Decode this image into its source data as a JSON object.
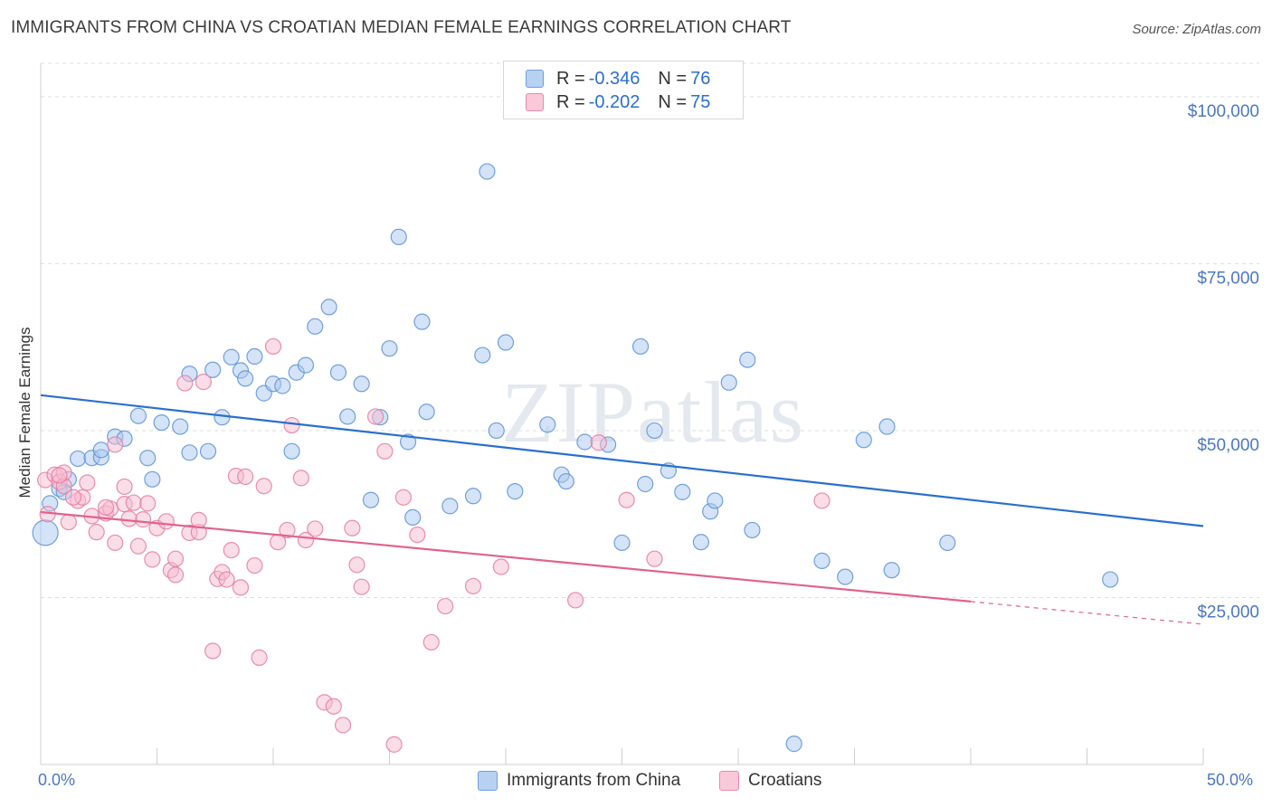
{
  "title": "IMMIGRANTS FROM CHINA VS CROATIAN MEDIAN FEMALE EARNINGS CORRELATION CHART",
  "source": "Source: ZipAtlas.com",
  "watermark": "ZIPatlas",
  "colors": {
    "blue_fill": "#a9c8ef",
    "blue_stroke": "#5b92d8",
    "blue_line": "#2a6fcf",
    "pink_fill": "#f6bccf",
    "pink_stroke": "#e67ba0",
    "pink_line": "#e0628e",
    "axis_text": "#4a78c4",
    "grid": "#dedede"
  },
  "legend": {
    "series1": {
      "r_label": "R =",
      "r_value": "-0.346",
      "n_label": "N =",
      "n_value": "76"
    },
    "series2": {
      "r_label": "R =",
      "r_value": "-0.202",
      "n_label": "N =",
      "n_value": "75"
    }
  },
  "chart_data": {
    "type": "scatter",
    "ylabel": "Median Female Earnings",
    "xlabel": "",
    "x_tick_labels": [
      "0.0%",
      "50.0%"
    ],
    "y_tick_labels": [
      "$25,000",
      "$50,000",
      "$75,000",
      "$100,000"
    ],
    "xlim": [
      0,
      50
    ],
    "ylim": [
      0,
      105000
    ],
    "y_ticks": [
      25000,
      50000,
      75000,
      100000
    ],
    "legend_position": "top-center",
    "grid": true,
    "series": [
      {
        "name": "Immigrants from China",
        "r": -0.346,
        "n": 76,
        "trend": {
          "x0": 0,
          "y0": 55300,
          "x1": 50,
          "y1": 35700
        },
        "points": [
          [
            0.2,
            34700
          ],
          [
            0.4,
            39100
          ],
          [
            0.8,
            41300
          ],
          [
            1.2,
            42700
          ],
          [
            1.6,
            45800
          ],
          [
            2.2,
            45900
          ],
          [
            2.6,
            46000
          ],
          [
            2.6,
            47100
          ],
          [
            3.2,
            49100
          ],
          [
            3.6,
            48800
          ],
          [
            4.2,
            52200
          ],
          [
            4.6,
            45900
          ],
          [
            4.8,
            42700
          ],
          [
            5.2,
            51200
          ],
          [
            6.0,
            50600
          ],
          [
            6.4,
            46700
          ],
          [
            6.4,
            58500
          ],
          [
            7.2,
            46900
          ],
          [
            7.4,
            59100
          ],
          [
            7.8,
            52000
          ],
          [
            8.2,
            61000
          ],
          [
            8.6,
            59000
          ],
          [
            8.8,
            57800
          ],
          [
            9.2,
            61100
          ],
          [
            9.6,
            55600
          ],
          [
            10.0,
            57000
          ],
          [
            10.4,
            56700
          ],
          [
            10.8,
            46900
          ],
          [
            11.0,
            58700
          ],
          [
            11.4,
            59800
          ],
          [
            11.8,
            65600
          ],
          [
            12.4,
            68500
          ],
          [
            12.8,
            58700
          ],
          [
            13.2,
            52100
          ],
          [
            13.8,
            57000
          ],
          [
            14.2,
            39600
          ],
          [
            14.6,
            52000
          ],
          [
            15.0,
            62300
          ],
          [
            15.4,
            79000
          ],
          [
            15.8,
            48300
          ],
          [
            16.0,
            37000
          ],
          [
            16.4,
            66300
          ],
          [
            16.6,
            52800
          ],
          [
            17.6,
            38700
          ],
          [
            18.6,
            40200
          ],
          [
            19.0,
            61300
          ],
          [
            19.2,
            88800
          ],
          [
            19.6,
            50000
          ],
          [
            20.0,
            63200
          ],
          [
            20.4,
            40900
          ],
          [
            21.8,
            50900
          ],
          [
            22.4,
            43400
          ],
          [
            22.6,
            42400
          ],
          [
            23.4,
            48300
          ],
          [
            24.4,
            47900
          ],
          [
            25.8,
            62600
          ],
          [
            25.0,
            33200
          ],
          [
            26.0,
            42000
          ],
          [
            26.4,
            50000
          ],
          [
            27.0,
            44000
          ],
          [
            27.6,
            40800
          ],
          [
            28.4,
            33300
          ],
          [
            28.8,
            37900
          ],
          [
            29.0,
            39500
          ],
          [
            29.6,
            57200
          ],
          [
            30.4,
            60600
          ],
          [
            30.6,
            35100
          ],
          [
            32.4,
            3100
          ],
          [
            33.6,
            30500
          ],
          [
            34.6,
            28100
          ],
          [
            35.4,
            48600
          ],
          [
            36.4,
            50600
          ],
          [
            36.6,
            29100
          ],
          [
            39.0,
            33200
          ],
          [
            46.0,
            27700
          ],
          [
            1.0,
            40800
          ]
        ]
      },
      {
        "name": "Croatians",
        "r": -0.202,
        "n": 75,
        "trend": {
          "x0": 0,
          "y0": 37800,
          "x1": 40,
          "y1": 24400,
          "dash_to": {
            "x": 50,
            "y": 21000
          }
        },
        "points": [
          [
            0.2,
            42600
          ],
          [
            0.3,
            37500
          ],
          [
            0.6,
            43400
          ],
          [
            0.8,
            42300
          ],
          [
            1.0,
            41700
          ],
          [
            1.0,
            43700
          ],
          [
            1.2,
            36300
          ],
          [
            1.6,
            39500
          ],
          [
            1.8,
            40000
          ],
          [
            2.0,
            42200
          ],
          [
            2.2,
            37200
          ],
          [
            2.4,
            34800
          ],
          [
            2.8,
            37600
          ],
          [
            3.0,
            38300
          ],
          [
            3.2,
            47900
          ],
          [
            3.2,
            33200
          ],
          [
            3.6,
            41600
          ],
          [
            3.6,
            39000
          ],
          [
            4.0,
            39200
          ],
          [
            4.2,
            32700
          ],
          [
            4.4,
            36700
          ],
          [
            4.6,
            39100
          ],
          [
            4.8,
            30700
          ],
          [
            5.0,
            35400
          ],
          [
            5.4,
            36400
          ],
          [
            5.6,
            29100
          ],
          [
            5.8,
            28400
          ],
          [
            5.8,
            30800
          ],
          [
            6.2,
            57100
          ],
          [
            6.4,
            34700
          ],
          [
            6.8,
            34800
          ],
          [
            6.8,
            36600
          ],
          [
            7.0,
            57300
          ],
          [
            7.4,
            17000
          ],
          [
            7.6,
            27800
          ],
          [
            7.8,
            28800
          ],
          [
            8.0,
            27700
          ],
          [
            8.2,
            32100
          ],
          [
            8.4,
            43200
          ],
          [
            8.6,
            26500
          ],
          [
            8.8,
            43100
          ],
          [
            9.2,
            29800
          ],
          [
            9.4,
            16000
          ],
          [
            9.6,
            41700
          ],
          [
            10.0,
            62600
          ],
          [
            10.2,
            33300
          ],
          [
            10.6,
            35100
          ],
          [
            10.8,
            50800
          ],
          [
            11.2,
            42900
          ],
          [
            11.4,
            33600
          ],
          [
            11.8,
            35300
          ],
          [
            12.2,
            9300
          ],
          [
            12.6,
            8700
          ],
          [
            13.0,
            5900
          ],
          [
            13.4,
            35400
          ],
          [
            13.6,
            29900
          ],
          [
            13.8,
            26600
          ],
          [
            14.4,
            52100
          ],
          [
            14.8,
            46900
          ],
          [
            15.2,
            3000
          ],
          [
            15.6,
            40000
          ],
          [
            16.2,
            34400
          ],
          [
            16.8,
            18300
          ],
          [
            17.4,
            23700
          ],
          [
            18.6,
            26700
          ],
          [
            19.8,
            29600
          ],
          [
            23.0,
            24600
          ],
          [
            24.0,
            48200
          ],
          [
            25.2,
            39600
          ],
          [
            26.4,
            30800
          ],
          [
            33.6,
            39500
          ],
          [
            0.8,
            43300
          ],
          [
            1.4,
            40000
          ],
          [
            3.8,
            36800
          ],
          [
            2.8,
            38500
          ]
        ]
      }
    ]
  },
  "bottom_legend": [
    "Immigrants from China",
    "Croatians"
  ]
}
